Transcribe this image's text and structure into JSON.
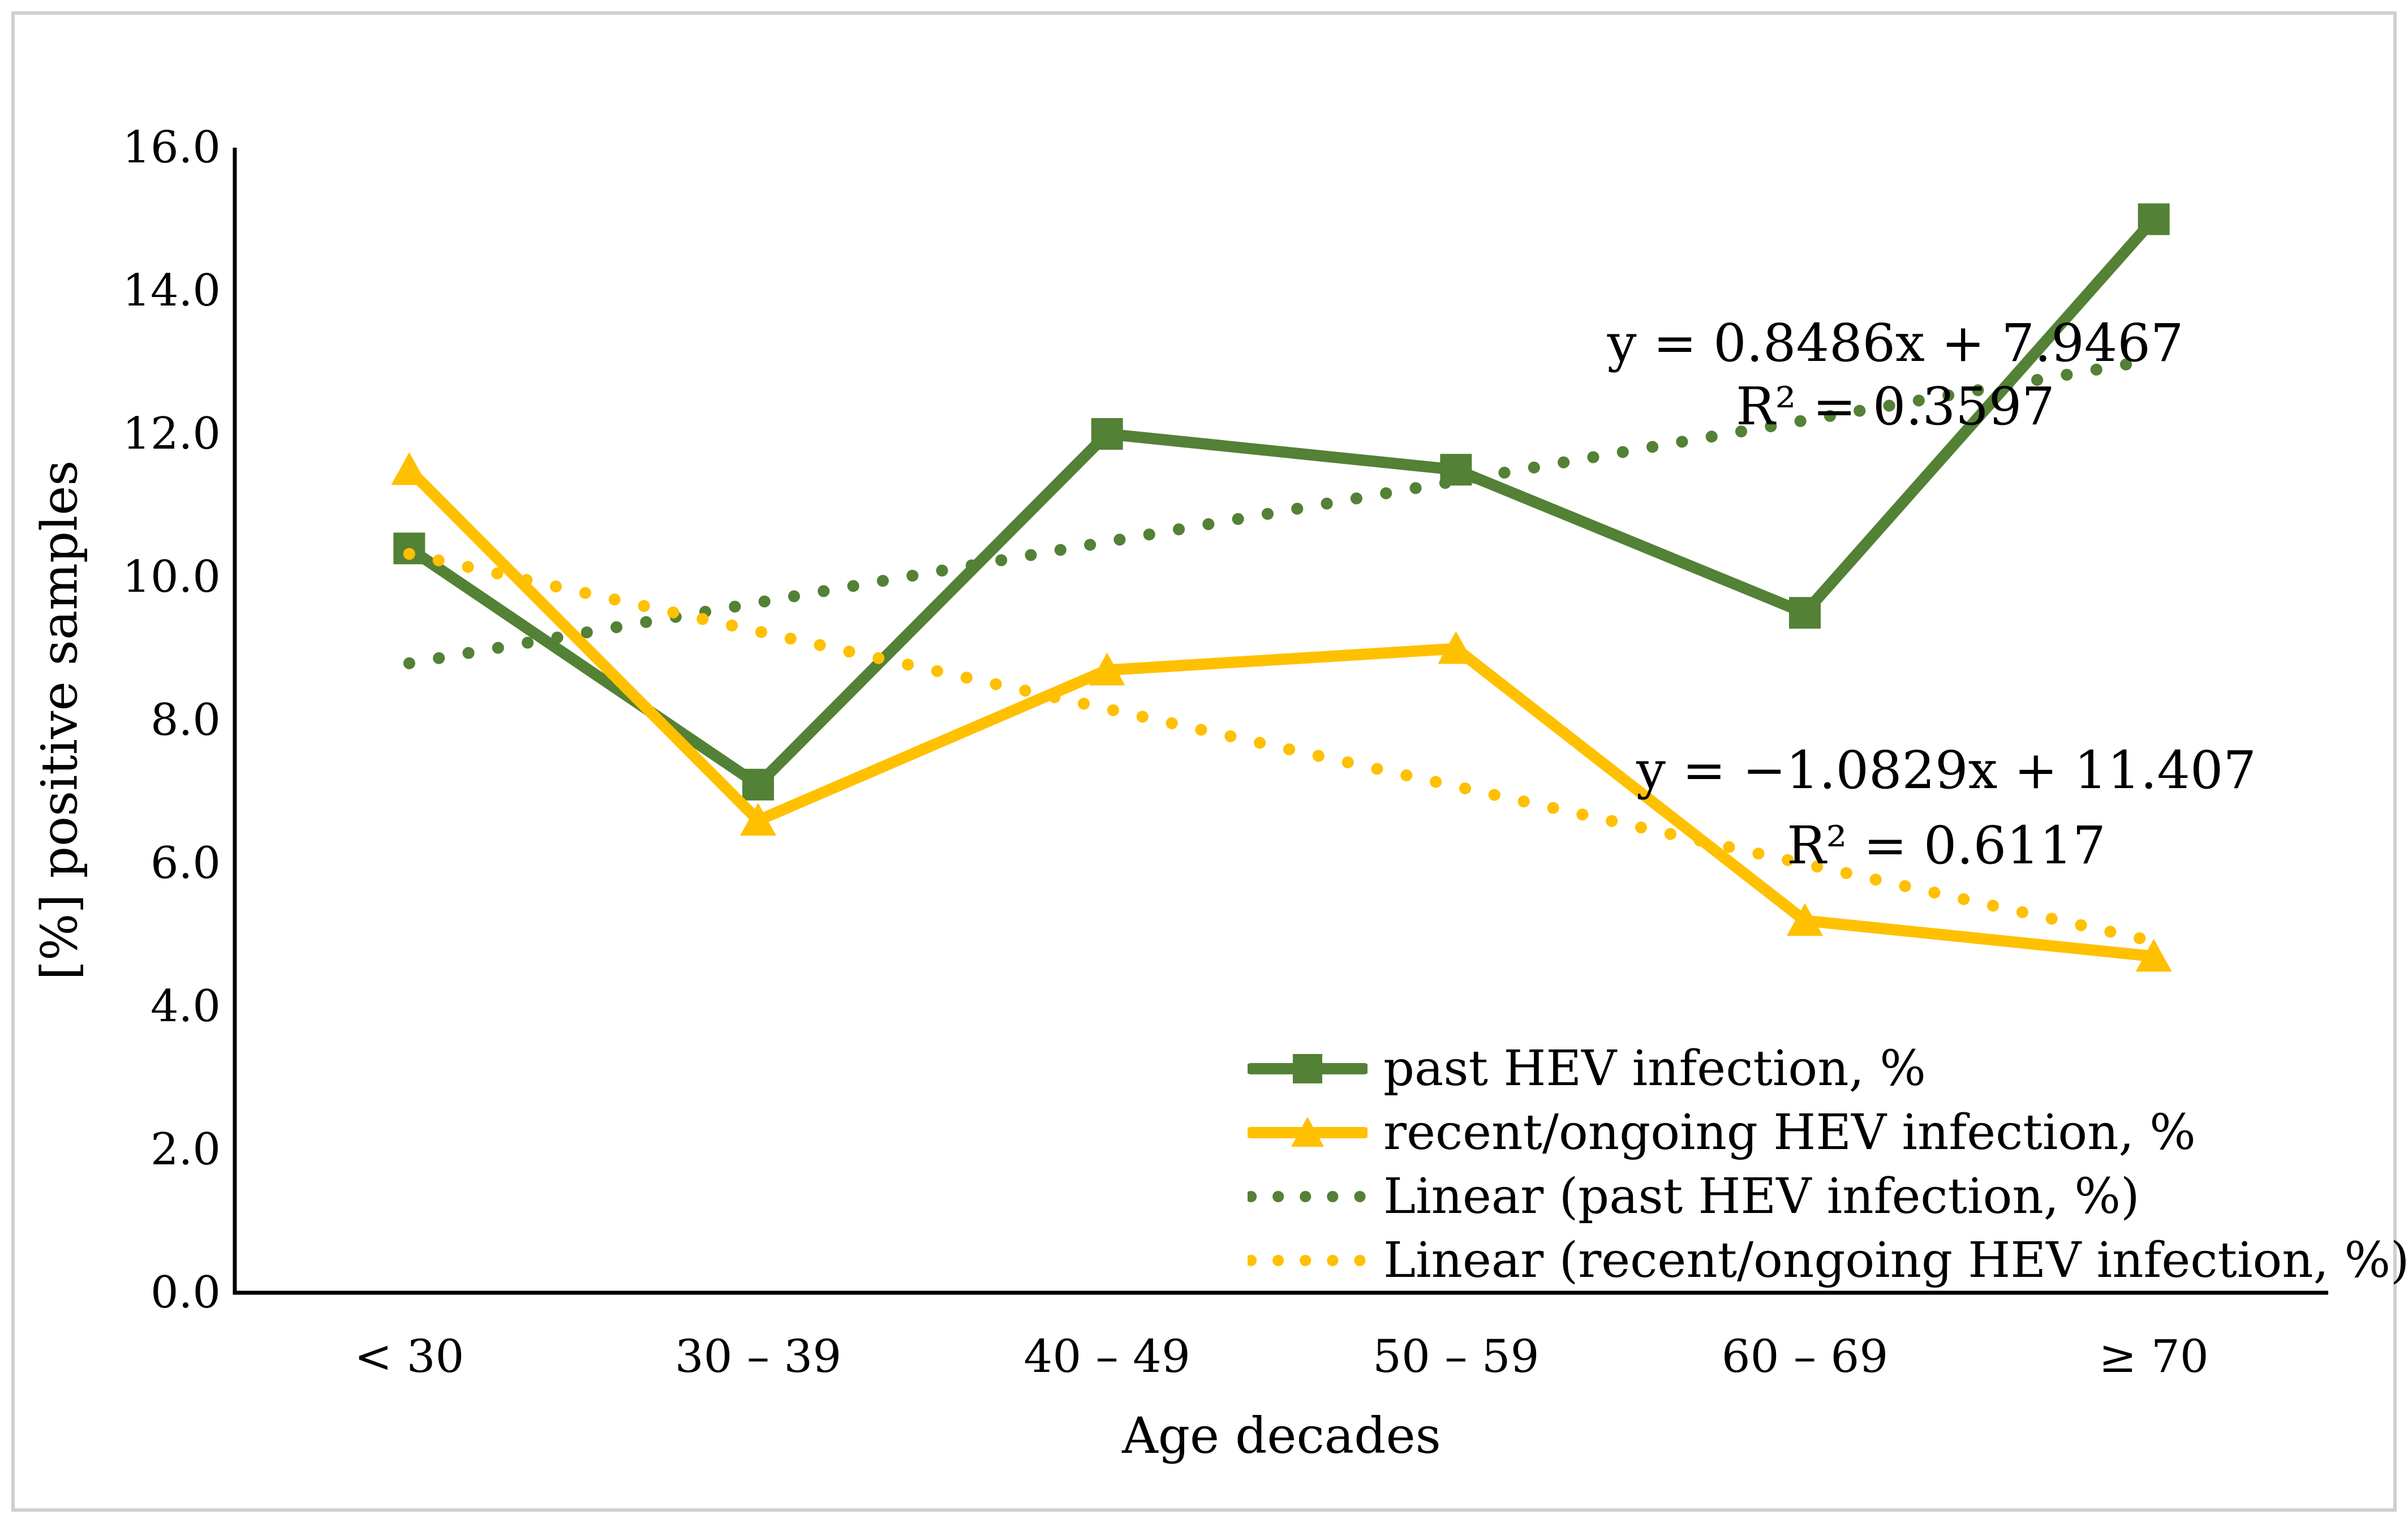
{
  "chart_data": {
    "type": "line",
    "categories": [
      "< 30",
      "30 – 39",
      "40 – 49",
      "50 – 59",
      "60 – 69",
      "≥ 70"
    ],
    "series": [
      {
        "name": "past HEV infection, %",
        "values": [
          10.4,
          7.1,
          12.0,
          11.5,
          9.5,
          15.0
        ],
        "color": "#538135",
        "marker": "square",
        "line": "solid"
      },
      {
        "name": "recent/ongoing HEV infection, %",
        "values": [
          11.5,
          6.6,
          8.7,
          9.0,
          5.2,
          4.7
        ],
        "color": "#FFC000",
        "marker": "triangle",
        "line": "solid"
      },
      {
        "name": "Linear (past HEV infection, %)",
        "trend": {
          "slope": 0.8486,
          "intercept": 7.9467,
          "r_squared": 0.3597
        },
        "color": "#538135",
        "marker": "none",
        "line": "dotted"
      },
      {
        "name": "Linear (recent/ongoing HEV infection, %)",
        "trend": {
          "slope": -1.0829,
          "intercept": 11.407,
          "r_squared": 0.6117
        },
        "color": "#FFC000",
        "marker": "none",
        "line": "dotted"
      }
    ],
    "xlabel": "Age decades",
    "ylabel": "[%] positive samples",
    "ylim": [
      0,
      16
    ],
    "ytick_labels": [
      "0.0",
      "2.0",
      "4.0",
      "6.0",
      "8.0",
      "10.0",
      "12.0",
      "14.0",
      "16.0"
    ],
    "grid": false,
    "legend_position": "bottom-right",
    "axis_color": "#000000"
  },
  "annotations": {
    "past": {
      "line1": "y = 0.8486x + 7.9467",
      "line2": "R² = 0.3597"
    },
    "recent": {
      "line1": "y = −1.0829x + 11.407",
      "line2": "R² = 0.6117"
    }
  }
}
